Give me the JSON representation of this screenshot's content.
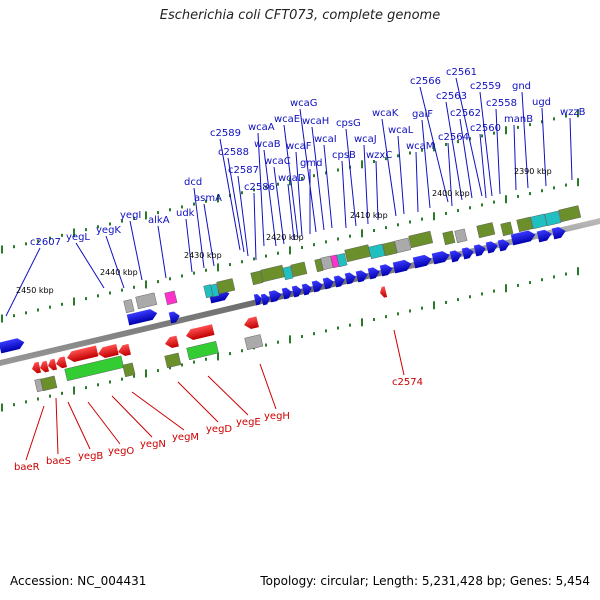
{
  "title": "Escherichia coli CFT073, complete genome",
  "footer": {
    "accession": "Accession: NC_004431",
    "summary": "Topology: circular; Length: 5,231,428 bp; Genes: 5,454"
  },
  "colors": {
    "forward_gene": "#1010e0",
    "reverse_gene": "#ee1010",
    "backbone": "#777777",
    "tick": "#2a7a2a",
    "cog_olive": "#6b8f2a",
    "cog_green": "#33cc33",
    "cog_cyan": "#20c0c0",
    "cog_gray": "#aaaaaa",
    "cog_magenta": "#ff33cc",
    "forward_label": "#1010c0",
    "reverse_label": "#cc0000",
    "kbp_label": "#000000"
  },
  "kbp_labels": [
    "2450 kbp",
    "2440 kbp",
    "2430 kbp",
    "2420 kbp",
    "2410 kbp",
    "2400 kbp",
    "2390 kbp"
  ],
  "forward_genes": [
    "c2607",
    "yegL",
    "yegK",
    "yegI",
    "alkA",
    "udk",
    "dcd",
    "asmA",
    "c2586",
    "c2587",
    "c2588",
    "c2589",
    "wcaA",
    "wcaB",
    "wcaC",
    "wcaD",
    "wcaE",
    "wcaF",
    "gmd",
    "wcaG",
    "wcaH",
    "wcaI",
    "cpsB",
    "cpsG",
    "wcaJ",
    "wzxC",
    "wcaK",
    "wcaL",
    "wcaM",
    "galF",
    "c2564",
    "c2566",
    "c2563",
    "c2562",
    "c2560",
    "c2561",
    "c2559",
    "c2558",
    "manB",
    "gnd",
    "ugd",
    "wzzB"
  ],
  "reverse_genes": [
    "baeR",
    "baeS",
    "yegB",
    "yegO",
    "yegN",
    "yegM",
    "yegD",
    "yegE",
    "yegH",
    "c2574"
  ]
}
